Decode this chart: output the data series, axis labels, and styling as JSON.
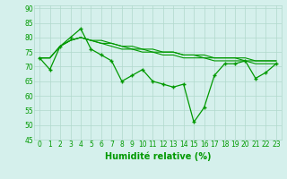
{
  "x": [
    0,
    1,
    2,
    3,
    4,
    5,
    6,
    7,
    8,
    9,
    10,
    11,
    12,
    13,
    14,
    15,
    16,
    17,
    18,
    19,
    20,
    21,
    22,
    23
  ],
  "main_line": [
    73,
    69,
    77,
    80,
    83,
    76,
    74,
    72,
    65,
    67,
    69,
    65,
    64,
    63,
    64,
    51,
    56,
    67,
    71,
    71,
    72,
    66,
    68,
    71
  ],
  "smooth_line1": [
    73,
    73,
    77,
    79,
    80,
    79,
    78,
    77,
    76,
    76,
    75,
    75,
    74,
    74,
    73,
    73,
    73,
    72,
    72,
    72,
    72,
    71,
    71,
    71
  ],
  "smooth_line2": [
    73,
    73,
    77,
    79,
    80,
    79,
    78,
    78,
    77,
    76,
    76,
    75,
    75,
    75,
    74,
    74,
    73,
    73,
    73,
    73,
    72,
    72,
    72,
    72
  ],
  "smooth_line3": [
    73,
    73,
    77,
    79,
    80,
    79,
    79,
    78,
    77,
    77,
    76,
    76,
    75,
    75,
    74,
    74,
    74,
    73,
    73,
    73,
    73,
    72,
    72,
    72
  ],
  "bg_color": "#d5f0ec",
  "grid_color": "#b0d8cc",
  "line_color": "#009900",
  "xlabel": "Humidité relative (%)",
  "ylim": [
    45,
    91
  ],
  "yticks": [
    45,
    50,
    55,
    60,
    65,
    70,
    75,
    80,
    85,
    90
  ],
  "xticks": [
    0,
    1,
    2,
    3,
    4,
    5,
    6,
    7,
    8,
    9,
    10,
    11,
    12,
    13,
    14,
    15,
    16,
    17,
    18,
    19,
    20,
    21,
    22,
    23
  ],
  "xlabel_fontsize": 7.0,
  "tick_fontsize": 5.5
}
